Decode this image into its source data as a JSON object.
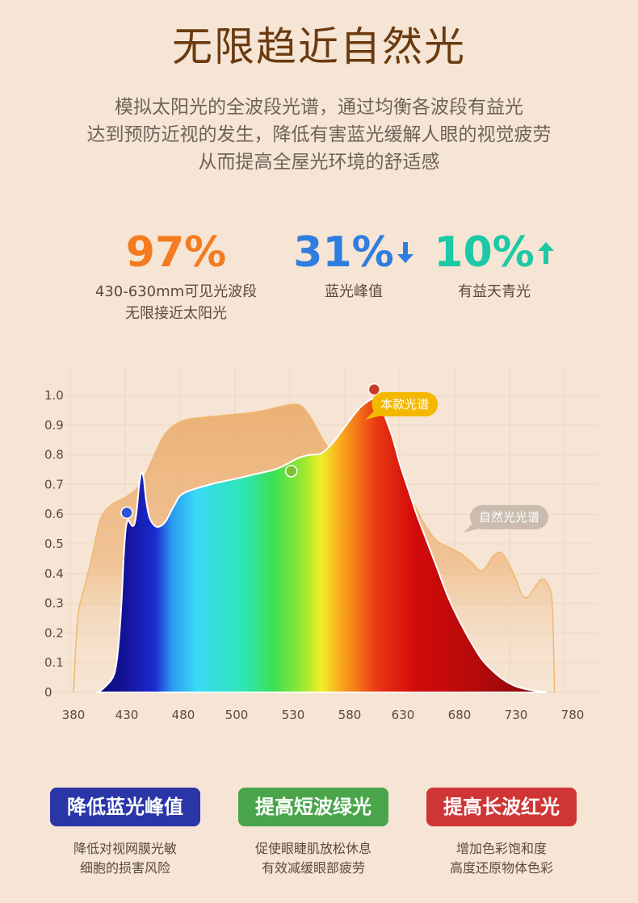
{
  "header": {
    "title": "无限趋近自然光",
    "desc_lines": [
      "模拟太阳光的全波段光谱，通过均衡各波段有益光",
      "达到预防近视的发生，降低有害蓝光缓解人眼的视觉疲劳",
      "从而提高全屋光环境的舒适感"
    ]
  },
  "stats": [
    {
      "value": "97%",
      "color": "#f47b20",
      "arrow": "",
      "label_lines": [
        "430-630mm可见光波段",
        "无限接近太阳光"
      ]
    },
    {
      "value": "31%",
      "color": "#2f7de0",
      "arrow": "down-arrow-icon",
      "label_lines": [
        "蓝光峰值"
      ]
    },
    {
      "value": "10%",
      "color": "#1cc9a6",
      "arrow": "up-arrow-icon",
      "label_lines": [
        "有益天青光"
      ]
    }
  ],
  "chart_data": {
    "type": "area",
    "xlabel": "",
    "ylabel": "",
    "x_ticks": [
      380,
      430,
      480,
      500,
      530,
      580,
      630,
      680,
      730,
      780
    ],
    "y_ticks": [
      0,
      0.1,
      0.2,
      0.3,
      0.4,
      0.5,
      0.6,
      0.7,
      0.8,
      0.9,
      1.0
    ],
    "y_tick_labels": [
      "0",
      "0.1",
      "0.2",
      "0.3",
      "0.4",
      "0.5",
      "0.6",
      "0.7",
      "0.8",
      "0.9",
      "1.0"
    ],
    "ylim": [
      0,
      1.0
    ],
    "grid": true,
    "series": [
      {
        "name": "自然光光谱",
        "color": "#f0b870",
        "points": [
          [
            380,
            0
          ],
          [
            384,
            0.25
          ],
          [
            390,
            0.35
          ],
          [
            397,
            0.45
          ],
          [
            405,
            0.58
          ],
          [
            415,
            0.63
          ],
          [
            430,
            0.66
          ],
          [
            442,
            0.7
          ],
          [
            452,
            0.78
          ],
          [
            462,
            0.86
          ],
          [
            472,
            0.9
          ],
          [
            482,
            0.92
          ],
          [
            492,
            0.93
          ],
          [
            505,
            0.94
          ],
          [
            515,
            0.95
          ],
          [
            525,
            0.965
          ],
          [
            533,
            0.97
          ],
          [
            540,
            0.955
          ],
          [
            548,
            0.91
          ],
          [
            555,
            0.86
          ],
          [
            562,
            0.82
          ],
          [
            568,
            0.8
          ],
          [
            575,
            0.79
          ],
          [
            590,
            0.77
          ],
          [
            605,
            0.76
          ],
          [
            618,
            0.73
          ],
          [
            628,
            0.69
          ],
          [
            640,
            0.63
          ],
          [
            650,
            0.56
          ],
          [
            660,
            0.51
          ],
          [
            670,
            0.49
          ],
          [
            680,
            0.47
          ],
          [
            690,
            0.44
          ],
          [
            698,
            0.41
          ],
          [
            703,
            0.42
          ],
          [
            710,
            0.46
          ],
          [
            717,
            0.47
          ],
          [
            724,
            0.43
          ],
          [
            730,
            0.38
          ],
          [
            735,
            0.33
          ],
          [
            740,
            0.32
          ],
          [
            746,
            0.35
          ],
          [
            752,
            0.38
          ],
          [
            757,
            0.37
          ],
          [
            762,
            0.3
          ],
          [
            764,
            0
          ]
        ]
      },
      {
        "name": "本款光谱",
        "color": "#e8502a",
        "points": [
          [
            403,
            0
          ],
          [
            410,
            0.02
          ],
          [
            418,
            0.06
          ],
          [
            422,
            0.15
          ],
          [
            425,
            0.3
          ],
          [
            427,
            0.45
          ],
          [
            429,
            0.55
          ],
          [
            431,
            0.58
          ],
          [
            433,
            0.57
          ],
          [
            435,
            0.56
          ],
          [
            437,
            0.57
          ],
          [
            439,
            0.62
          ],
          [
            441,
            0.7
          ],
          [
            443,
            0.74
          ],
          [
            445,
            0.72
          ],
          [
            447,
            0.65
          ],
          [
            450,
            0.59
          ],
          [
            455,
            0.56
          ],
          [
            460,
            0.56
          ],
          [
            465,
            0.58
          ],
          [
            472,
            0.63
          ],
          [
            480,
            0.67
          ],
          [
            490,
            0.7
          ],
          [
            500,
            0.72
          ],
          [
            510,
            0.735
          ],
          [
            520,
            0.75
          ],
          [
            527,
            0.77
          ],
          [
            535,
            0.79
          ],
          [
            545,
            0.8
          ],
          [
            555,
            0.805
          ],
          [
            565,
            0.84
          ],
          [
            575,
            0.89
          ],
          [
            583,
            0.93
          ],
          [
            590,
            0.96
          ],
          [
            597,
            0.98
          ],
          [
            603,
            0.99
          ],
          [
            607,
            0.985
          ],
          [
            610,
            0.96
          ],
          [
            614,
            0.92
          ],
          [
            620,
            0.86
          ],
          [
            627,
            0.77
          ],
          [
            635,
            0.68
          ],
          [
            642,
            0.6
          ],
          [
            650,
            0.52
          ],
          [
            660,
            0.42
          ],
          [
            670,
            0.32
          ],
          [
            680,
            0.24
          ],
          [
            690,
            0.17
          ],
          [
            700,
            0.11
          ],
          [
            710,
            0.07
          ],
          [
            720,
            0.04
          ],
          [
            730,
            0.02
          ],
          [
            740,
            0.01
          ],
          [
            750,
            0.004
          ],
          [
            757,
            0
          ]
        ]
      }
    ],
    "markers": [
      {
        "x": 430,
        "y": 0.605,
        "color": "#2a54d0"
      },
      {
        "x": 529,
        "y": 0.745,
        "color": "#7cc030"
      },
      {
        "x": 603,
        "y": 1.02,
        "color": "#c93a28"
      }
    ],
    "labels": [
      {
        "text": "本款光谱",
        "color": "#f5b800",
        "anchor_x": 612,
        "anchor_y": 0.97
      },
      {
        "text": "自然光光谱",
        "color": "#cbbcaf",
        "anchor_x": 700,
        "anchor_y": 0.59
      }
    ],
    "gradient_stops": [
      [
        403,
        "#0a0a78"
      ],
      [
        430,
        "#14149a"
      ],
      [
        455,
        "#1c2ad0"
      ],
      [
        470,
        "#2a9af0"
      ],
      [
        485,
        "#3ad9f5"
      ],
      [
        505,
        "#2ee6b0"
      ],
      [
        520,
        "#3ce050"
      ],
      [
        540,
        "#a0e830"
      ],
      [
        555,
        "#f0ee28"
      ],
      [
        570,
        "#f8b020"
      ],
      [
        585,
        "#f57e18"
      ],
      [
        605,
        "#e83814"
      ],
      [
        640,
        "#d40a0a"
      ],
      [
        700,
        "#b00a0a"
      ],
      [
        757,
        "#800808"
      ]
    ]
  },
  "features": [
    {
      "label": "降低蓝光峰值",
      "color": "#2a35a8",
      "note_lines": [
        "降低对视网膜光敏",
        "细胞的损害风险"
      ]
    },
    {
      "label": "提高短波绿光",
      "color": "#4aa54a",
      "note_lines": [
        "促使眼睫肌放松休息",
        "有效减缓眼部疲劳"
      ]
    },
    {
      "label": "提高长波红光",
      "color": "#cf3535",
      "note_lines": [
        "增加色彩饱和度",
        "高度还原物体色彩"
      ]
    }
  ]
}
